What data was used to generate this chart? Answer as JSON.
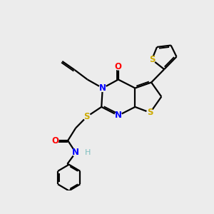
{
  "bg_color": "#ececec",
  "atom_colors": {
    "N": "#0000ff",
    "O": "#ff0000",
    "S": "#ccaa00",
    "H": "#7fbfbf"
  },
  "bond_color": "#000000",
  "figsize": [
    3.0,
    3.0
  ],
  "dpi": 100,
  "xlim": [
    0,
    10
  ],
  "ylim": [
    0,
    10
  ]
}
